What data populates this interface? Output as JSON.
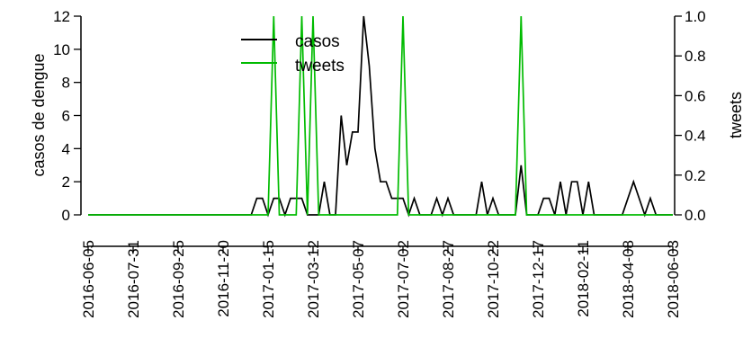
{
  "chart_data": {
    "type": "line",
    "legend": {
      "position": "top-center"
    },
    "y_left": {
      "label": "casos de dengue",
      "ticks": [
        "0",
        "2",
        "4",
        "6",
        "8",
        "10",
        "12"
      ],
      "lim": [
        0,
        12
      ]
    },
    "y_right": {
      "label": "tweets",
      "ticks": [
        "0.0",
        "0.2",
        "0.4",
        "0.6",
        "0.8",
        "1.0"
      ],
      "lim": [
        0,
        1
      ]
    },
    "x": {
      "tick_labels": [
        "2016-06-05",
        "2016-07-31",
        "2016-09-25",
        "2016-11-20",
        "2017-01-15",
        "2017-03-12",
        "2017-05-07",
        "2017-07-02",
        "2017-08-27",
        "2017-10-22",
        "2017-12-17",
        "2018-02-11",
        "2018-04-08",
        "2018-06-03"
      ]
    },
    "series": [
      {
        "name": "casos",
        "color": "#000000",
        "axis": "left",
        "points": [
          [
            "2016-06-05",
            0
          ],
          [
            "2016-12-25",
            0
          ],
          [
            "2017-01-01",
            1
          ],
          [
            "2017-01-08",
            1
          ],
          [
            "2017-01-15",
            0
          ],
          [
            "2017-01-22",
            1
          ],
          [
            "2017-01-29",
            1
          ],
          [
            "2017-02-05",
            0
          ],
          [
            "2017-02-12",
            1
          ],
          [
            "2017-02-19",
            1
          ],
          [
            "2017-02-26",
            1
          ],
          [
            "2017-03-05",
            0
          ],
          [
            "2017-03-19",
            0
          ],
          [
            "2017-03-26",
            2
          ],
          [
            "2017-04-02",
            0
          ],
          [
            "2017-04-09",
            0
          ],
          [
            "2017-04-16",
            6
          ],
          [
            "2017-04-23",
            3
          ],
          [
            "2017-04-30",
            5
          ],
          [
            "2017-05-07",
            5
          ],
          [
            "2017-05-14",
            12
          ],
          [
            "2017-05-21",
            9
          ],
          [
            "2017-05-28",
            4
          ],
          [
            "2017-06-04",
            2
          ],
          [
            "2017-06-11",
            2
          ],
          [
            "2017-06-18",
            1
          ],
          [
            "2017-06-25",
            1
          ],
          [
            "2017-07-02",
            1
          ],
          [
            "2017-07-09",
            0
          ],
          [
            "2017-07-16",
            1
          ],
          [
            "2017-07-23",
            0
          ],
          [
            "2017-08-06",
            0
          ],
          [
            "2017-08-13",
            1
          ],
          [
            "2017-08-20",
            0
          ],
          [
            "2017-08-27",
            1
          ],
          [
            "2017-09-03",
            0
          ],
          [
            "2017-10-01",
            0
          ],
          [
            "2017-10-08",
            2
          ],
          [
            "2017-10-15",
            0
          ],
          [
            "2017-10-22",
            1
          ],
          [
            "2017-10-29",
            0
          ],
          [
            "2017-11-19",
            0
          ],
          [
            "2017-11-26",
            3
          ],
          [
            "2017-12-03",
            0
          ],
          [
            "2017-12-17",
            0
          ],
          [
            "2017-12-24",
            1
          ],
          [
            "2017-12-31",
            1
          ],
          [
            "2018-01-07",
            0
          ],
          [
            "2018-01-14",
            2
          ],
          [
            "2018-01-21",
            0
          ],
          [
            "2018-01-28",
            2
          ],
          [
            "2018-02-04",
            2
          ],
          [
            "2018-02-11",
            0
          ],
          [
            "2018-02-18",
            2
          ],
          [
            "2018-02-25",
            0
          ],
          [
            "2018-04-01",
            0
          ],
          [
            "2018-04-15",
            2
          ],
          [
            "2018-04-29",
            0
          ],
          [
            "2018-05-06",
            1
          ],
          [
            "2018-05-13",
            0
          ],
          [
            "2018-06-03",
            0
          ]
        ]
      },
      {
        "name": "tweets",
        "color": "#00BB00",
        "axis": "right",
        "points": [
          [
            "2016-06-05",
            0
          ],
          [
            "2017-01-15",
            0
          ],
          [
            "2017-01-22",
            1
          ],
          [
            "2017-01-29",
            0
          ],
          [
            "2017-02-19",
            0
          ],
          [
            "2017-02-26",
            1
          ],
          [
            "2017-03-05",
            0
          ],
          [
            "2017-03-12",
            1
          ],
          [
            "2017-03-19",
            0
          ],
          [
            "2017-06-25",
            0
          ],
          [
            "2017-07-02",
            1
          ],
          [
            "2017-07-09",
            0
          ],
          [
            "2017-11-19",
            0
          ],
          [
            "2017-11-26",
            1
          ],
          [
            "2017-12-03",
            0
          ],
          [
            "2018-06-03",
            0
          ]
        ]
      }
    ]
  }
}
